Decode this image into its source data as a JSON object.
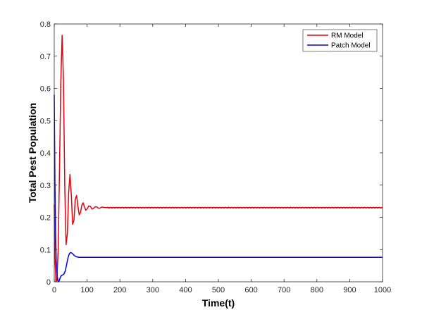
{
  "chart_data": {
    "type": "line",
    "title": "",
    "xlabel": "Time(t)",
    "ylabel": "Total Pest Population",
    "xlim": [
      0,
      1000
    ],
    "ylim": [
      0,
      0.8
    ],
    "xticks": [
      0,
      100,
      200,
      300,
      400,
      500,
      600,
      700,
      800,
      900,
      1000
    ],
    "yticks": [
      0,
      0.1,
      0.2,
      0.3,
      0.4,
      0.5,
      0.6,
      0.7,
      0.8
    ],
    "xtick_labels": [
      "0",
      "100",
      "200",
      "300",
      "400",
      "500",
      "600",
      "700",
      "800",
      "900",
      "1000"
    ],
    "ytick_labels": [
      "0",
      "0.1",
      "0.2",
      "0.3",
      "0.4",
      "0.5",
      "0.6",
      "0.7",
      "0.8"
    ],
    "grid": false,
    "legend_position": "top-right",
    "series": [
      {
        "name": "RM Model",
        "color": "#e8000b",
        "x": [
          0,
          2,
          5,
          8,
          12,
          16,
          20,
          24,
          28,
          32,
          36,
          40,
          44,
          48,
          52,
          56,
          60,
          64,
          68,
          72,
          76,
          80,
          84,
          88,
          92,
          96,
          100,
          105,
          110,
          115,
          120,
          125,
          130,
          135,
          140,
          145,
          150,
          160,
          180,
          200,
          300,
          400,
          500,
          600,
          700,
          800,
          900,
          1000
        ],
        "y": [
          0.24,
          0.08,
          0.0,
          0.005,
          0.1,
          0.35,
          0.62,
          0.765,
          0.63,
          0.3,
          0.115,
          0.15,
          0.28,
          0.333,
          0.27,
          0.178,
          0.19,
          0.255,
          0.268,
          0.235,
          0.208,
          0.215,
          0.238,
          0.245,
          0.232,
          0.222,
          0.226,
          0.235,
          0.234,
          0.226,
          0.228,
          0.233,
          0.232,
          0.228,
          0.229,
          0.232,
          0.231,
          0.23,
          0.23,
          0.23,
          0.23,
          0.23,
          0.23,
          0.23,
          0.23,
          0.23,
          0.23,
          0.23
        ]
      },
      {
        "name": "Patch Model",
        "color": "#0000e6",
        "x": [
          0,
          1,
          2,
          4,
          6,
          9,
          12,
          15,
          18,
          22,
          26,
          30,
          34,
          38,
          42,
          46,
          50,
          54,
          58,
          62,
          66,
          70,
          75,
          80,
          90,
          100,
          120,
          150,
          200,
          300,
          400,
          500,
          600,
          700,
          800,
          900,
          1000
        ],
        "y": [
          0.58,
          0.45,
          0.32,
          0.16,
          0.065,
          0.018,
          0.0,
          0.003,
          0.012,
          0.02,
          0.021,
          0.025,
          0.035,
          0.055,
          0.075,
          0.087,
          0.091,
          0.089,
          0.085,
          0.081,
          0.078,
          0.077,
          0.076,
          0.076,
          0.076,
          0.076,
          0.076,
          0.076,
          0.076,
          0.076,
          0.076,
          0.076,
          0.076,
          0.076,
          0.076,
          0.076,
          0.076
        ]
      }
    ]
  }
}
